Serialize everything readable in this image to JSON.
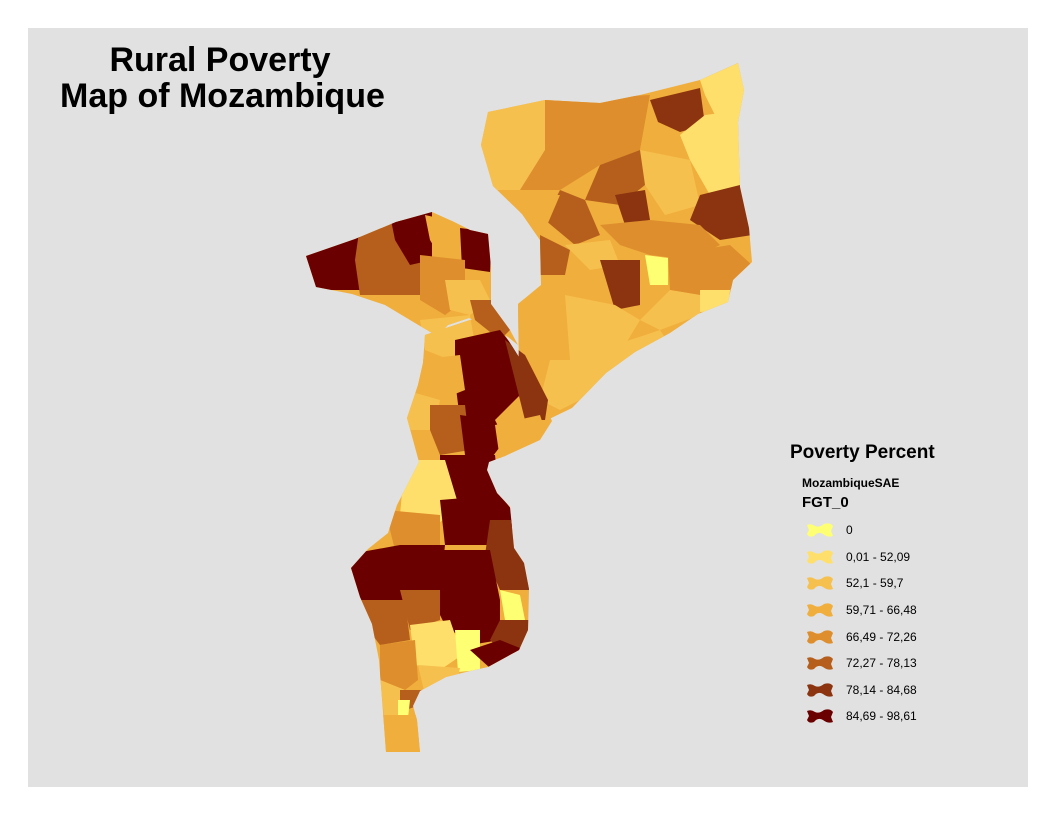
{
  "title": {
    "line1": "Rural Poverty",
    "line2": "Map of Mozambique"
  },
  "legend": {
    "title": "Poverty Percent",
    "layer": "MozambiqueSAE",
    "field": "FGT_0",
    "classes": [
      {
        "label": "0",
        "color": "#ffff73"
      },
      {
        "label": "0,01 - 52,09",
        "color": "#ffdf6b"
      },
      {
        "label": "52,1 - 59,7",
        "color": "#f6c04f"
      },
      {
        "label": "59,71 - 66,48",
        "color": "#f0ae3c"
      },
      {
        "label": "66,49 - 72,26",
        "color": "#de8e2c"
      },
      {
        "label": "72,27 - 78,13",
        "color": "#b65f1d"
      },
      {
        "label": "78,14 - 84,68",
        "color": "#8c3410"
      },
      {
        "label": "84,69 - 98,61",
        "color": "#6a0000"
      }
    ]
  }
}
